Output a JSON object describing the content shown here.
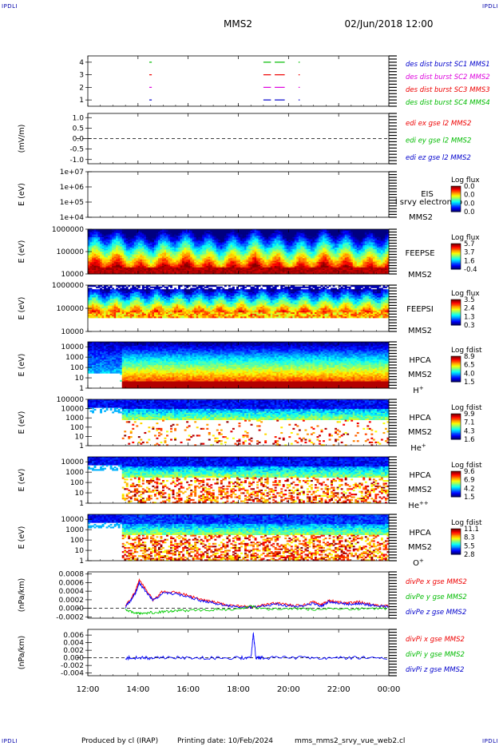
{
  "header": {
    "corner_label": "IPDLI",
    "mission": "MMS2",
    "datetime": "02/Jun/2018 12:00"
  },
  "footer": {
    "produced_by": "Produced by cl (IRAP)",
    "printing_date": "Printing date: 10/Feb/2024",
    "file": "mms_mms2_srvy_vue_web2.cl"
  },
  "colors": {
    "red": "#ff0000",
    "green": "#00cc00",
    "blue": "#0000ff",
    "magenta": "#dd00dd"
  },
  "time_axis": {
    "start_hour": 12,
    "end_hour": 24,
    "ticks": [
      {
        "hour": 12,
        "label": "12:00"
      },
      {
        "hour": 14,
        "label": "14:00"
      },
      {
        "hour": 16,
        "label": "16:00"
      },
      {
        "hour": 18,
        "label": "18:00"
      },
      {
        "hour": 20,
        "label": "20:00"
      },
      {
        "hour": 22,
        "label": "22:00"
      },
      {
        "hour": 24,
        "label": "00:00"
      }
    ]
  },
  "chart_data": [
    {
      "id": "burst",
      "type": "scatter",
      "ylim": [
        0.5,
        4.5
      ],
      "yticks": [
        {
          "v": 1,
          "label": "1"
        },
        {
          "v": 2,
          "label": "2"
        },
        {
          "v": 3,
          "label": "3"
        },
        {
          "v": 4,
          "label": "4"
        }
      ],
      "legend": [
        {
          "text": "des dist burst SC1 MMS1",
          "color": "#0000cc"
        },
        {
          "text": "des dist burst SC2 MMS2",
          "color": "#dd00dd"
        },
        {
          "text": "des dist burst SC3 MMS3",
          "color": "#ee0000"
        },
        {
          "text": "des dist burst SC4 MMS4",
          "color": "#00bb00"
        }
      ],
      "segments": [
        {
          "level": 4,
          "color": "#00bb00",
          "intervals": [
            [
              14.45,
              14.55
            ],
            [
              19.0,
              19.3
            ],
            [
              19.45,
              19.85
            ],
            [
              20.4,
              20.45
            ]
          ]
        },
        {
          "level": 3,
          "color": "#ee0000",
          "intervals": [
            [
              14.45,
              14.55
            ],
            [
              19.0,
              19.3
            ],
            [
              19.45,
              19.85
            ],
            [
              20.4,
              20.45
            ]
          ]
        },
        {
          "level": 2,
          "color": "#dd00dd",
          "intervals": [
            [
              14.45,
              14.55
            ],
            [
              19.0,
              19.3
            ],
            [
              19.45,
              19.85
            ],
            [
              20.4,
              20.45
            ]
          ]
        },
        {
          "level": 1,
          "color": "#0000cc",
          "intervals": [
            [
              14.45,
              14.55
            ],
            [
              19.0,
              19.3
            ],
            [
              19.45,
              19.85
            ],
            [
              20.4,
              20.45
            ]
          ]
        }
      ]
    },
    {
      "id": "edi",
      "type": "line",
      "ylabel": "(mV/m)",
      "ylim": [
        -1.2,
        1.2
      ],
      "yticks": [
        {
          "v": 1.0,
          "label": "1.0"
        },
        {
          "v": 0.5,
          "label": "0.5"
        },
        {
          "v": 0.0,
          "label": "0.0"
        },
        {
          "v": -0.5,
          "label": "-0.5"
        },
        {
          "v": -1.0,
          "label": "-1.0"
        }
      ],
      "zero_line": true,
      "legend": [
        {
          "text": "edi ex gse l2 MMS2",
          "color": "#ee0000"
        },
        {
          "text": "edi ey gse l2 MMS2",
          "color": "#00bb00"
        },
        {
          "text": "edi ez gse l2 MMS2",
          "color": "#0000cc"
        }
      ]
    },
    {
      "id": "eis",
      "type": "heatmap",
      "ylabel": "E (eV)",
      "log": true,
      "ylim": [
        10000,
        10000000
      ],
      "yticks": [
        {
          "v": 10000000,
          "label": "1e+07"
        },
        {
          "v": 1000000,
          "label": "1e+06"
        },
        {
          "v": 100000,
          "label": "1e+05"
        },
        {
          "v": 10000,
          "label": "1e+04"
        }
      ],
      "instrument": [
        "EIS",
        "l srvy electron to",
        "MMS2"
      ],
      "colorbar": {
        "title": "Log flux",
        "labels": [
          "0.0",
          "0.0",
          "0.0",
          "0.0"
        ]
      },
      "empty": true
    },
    {
      "id": "feepse",
      "type": "heatmap",
      "ylabel": "E (eV)",
      "log": true,
      "ylim": [
        10000,
        1000000
      ],
      "yticks": [
        {
          "v": 1000000,
          "label": "1000000"
        },
        {
          "v": 100000,
          "label": "100000"
        },
        {
          "v": 10000,
          "label": "10000"
        }
      ],
      "instrument": [
        "FEEPSE",
        "MMS2"
      ],
      "colorbar": {
        "title": "Log flux",
        "labels": [
          "5.7",
          "3.7",
          "1.6",
          "-0.4"
        ]
      }
    },
    {
      "id": "feepsi",
      "type": "heatmap",
      "ylabel": "E (eV)",
      "log": true,
      "ylim": [
        10000,
        1000000
      ],
      "yticks": [
        {
          "v": 1000000,
          "label": "1000000"
        },
        {
          "v": 100000,
          "label": "100000"
        },
        {
          "v": 10000,
          "label": "10000"
        }
      ],
      "instrument": [
        "FEEPSI",
        "MMS2"
      ],
      "colorbar": {
        "title": "Log flux",
        "labels": [
          "3.5",
          "2.4",
          "1.3",
          "0.3"
        ]
      }
    },
    {
      "id": "hpca_h",
      "type": "heatmap",
      "ylabel": "E (eV)",
      "log": true,
      "ylim": [
        1,
        30000
      ],
      "yticks": [
        {
          "v": 10000,
          "label": "10000"
        },
        {
          "v": 1000,
          "label": "1000"
        },
        {
          "v": 100,
          "label": "100"
        },
        {
          "v": 10,
          "label": "10"
        },
        {
          "v": 1,
          "label": "1"
        }
      ],
      "instrument": [
        "HPCA",
        "MMS2"
      ],
      "species": {
        "base": "H",
        "sup": "+"
      },
      "colorbar": {
        "title": "Log fdist",
        "labels": [
          "8.9",
          "6.5",
          "4.0",
          "1.5"
        ]
      }
    },
    {
      "id": "hpca_he",
      "type": "heatmap",
      "ylabel": "E (eV)",
      "log": true,
      "ylim": [
        1,
        100000
      ],
      "yticks": [
        {
          "v": 100000,
          "label": "100000"
        },
        {
          "v": 10000,
          "label": "10000"
        },
        {
          "v": 1000,
          "label": "1000"
        },
        {
          "v": 100,
          "label": "100"
        },
        {
          "v": 10,
          "label": "10"
        },
        {
          "v": 1,
          "label": "1"
        }
      ],
      "instrument": [
        "HPCA",
        "MMS2"
      ],
      "species": {
        "base": "He",
        "sup": "+"
      },
      "colorbar": {
        "title": "Log fdist",
        "labels": [
          "9.9",
          "7.1",
          "4.3",
          "1.6"
        ]
      }
    },
    {
      "id": "hpca_he2",
      "type": "heatmap",
      "ylabel": "E (eV)",
      "log": true,
      "ylim": [
        1,
        30000
      ],
      "yticks": [
        {
          "v": 10000,
          "label": "10000"
        },
        {
          "v": 1000,
          "label": "1000"
        },
        {
          "v": 100,
          "label": "100"
        },
        {
          "v": 10,
          "label": "10"
        },
        {
          "v": 1,
          "label": "1"
        }
      ],
      "instrument": [
        "HPCA",
        "MMS2"
      ],
      "species": {
        "base": "He",
        "sup": "++"
      },
      "colorbar": {
        "title": "Log fdist",
        "labels": [
          "9.6",
          "6.9",
          "4.2",
          "1.5"
        ]
      }
    },
    {
      "id": "hpca_o",
      "type": "heatmap",
      "ylabel": "E (eV)",
      "log": true,
      "ylim": [
        1,
        30000
      ],
      "yticks": [
        {
          "v": 10000,
          "label": "10000"
        },
        {
          "v": 1000,
          "label": "1000"
        },
        {
          "v": 100,
          "label": "100"
        },
        {
          "v": 10,
          "label": "10"
        },
        {
          "v": 1,
          "label": "1"
        }
      ],
      "instrument": [
        "HPCA",
        "MMS2"
      ],
      "species": {
        "base": "O",
        "sup": "+"
      },
      "colorbar": {
        "title": "Log fdist",
        "labels": [
          "11.1",
          "8.3",
          "5.5",
          "2.8"
        ]
      }
    },
    {
      "id": "divpe",
      "type": "line",
      "ylabel": "(nPa/km)",
      "ylim": [
        -0.00023,
        0.00085
      ],
      "yticks": [
        {
          "v": 0.0008,
          "label": "0.0008"
        },
        {
          "v": 0.0006,
          "label": "0.0006"
        },
        {
          "v": 0.0004,
          "label": "0.0004"
        },
        {
          "v": 0.0002,
          "label": "0.0002"
        },
        {
          "v": 0.0,
          "label": "0.0000"
        },
        {
          "v": -0.0002,
          "label": "-0.0002"
        }
      ],
      "zero_line": true,
      "legend": [
        {
          "text": "divPe x gse MMS2",
          "color": "#ee0000"
        },
        {
          "text": "divPe y gse MMS2",
          "color": "#00bb00"
        },
        {
          "text": "divPe z gse MMS2",
          "color": "#0000cc"
        }
      ],
      "series": [
        {
          "name": "divPe x gse MMS2",
          "color": "#ff0000",
          "x": [
            13.5,
            13.7,
            13.9,
            14.05,
            14.3,
            14.6,
            15.0,
            15.5,
            16.0,
            16.5,
            17.0,
            17.5,
            18.0,
            18.5,
            19.0,
            19.5,
            20.0,
            20.5,
            21.0,
            21.3,
            21.6,
            22.0,
            22.4,
            22.8,
            23.2,
            23.6,
            24.0
          ],
          "y": [
            5e-05,
            0.0002,
            0.0004,
            0.00065,
            0.00045,
            0.0002,
            0.0004,
            0.00037,
            0.0003,
            0.0002,
            0.00015,
            8e-05,
            5e-05,
            3e-05,
            8e-05,
            0.00012,
            8e-05,
            6e-05,
            0.00015,
            8e-05,
            0.00018,
            0.00015,
            0.00012,
            0.00015,
            0.0001,
            6e-05,
            5e-05
          ]
        },
        {
          "name": "divPe z gse MMS2",
          "color": "#0000ff",
          "x": [
            13.5,
            13.7,
            13.9,
            14.05,
            14.3,
            14.6,
            15.0,
            15.5,
            16.0,
            16.5,
            17.0,
            17.5,
            18.0,
            18.5,
            19.0,
            19.5,
            20.0,
            20.5,
            21.0,
            21.3,
            21.6,
            22.0,
            22.4,
            22.8,
            23.2,
            23.6,
            24.0
          ],
          "y": [
            3e-05,
            0.00018,
            0.00035,
            0.0006,
            0.0004,
            0.00018,
            0.00036,
            0.00034,
            0.00027,
            0.00018,
            0.00013,
            6e-05,
            3e-05,
            2e-05,
            6e-05,
            0.0001,
            6e-05,
            4e-05,
            0.00012,
            6e-05,
            0.00015,
            0.00012,
            0.0001,
            0.00012,
            8e-05,
            5e-05,
            4e-05
          ]
        },
        {
          "name": "divPe y gse MMS2",
          "color": "#00cc00",
          "x": [
            13.5,
            13.8,
            14.1,
            14.5,
            15.0,
            15.5,
            16.0,
            17.0,
            18.0,
            18.5,
            19.0,
            20.0,
            21.0,
            22.0,
            23.0,
            24.0
          ],
          "y": [
            -3e-05,
            -0.0001,
            -0.00012,
            -0.0001,
            -8e-05,
            -6e-05,
            -5e-05,
            -3e-05,
            -2e-05,
            5e-05,
            -2e-05,
            -1e-05,
            -2e-05,
            -1e-05,
            -1e-05,
            0.0
          ]
        }
      ]
    },
    {
      "id": "divpi",
      "type": "line",
      "ylabel": "(nPa/km)",
      "ylim": [
        -0.0047,
        0.0075
      ],
      "yticks": [
        {
          "v": 0.006,
          "label": "0.006"
        },
        {
          "v": 0.004,
          "label": "0.004"
        },
        {
          "v": 0.002,
          "label": "0.002"
        },
        {
          "v": 0.0,
          "label": "0.000"
        },
        {
          "v": -0.002,
          "label": "-0.002"
        },
        {
          "v": -0.004,
          "label": "-0.004"
        }
      ],
      "zero_line": true,
      "legend": [
        {
          "text": "divPi x gse MMS2",
          "color": "#ee0000"
        },
        {
          "text": "divPi y gse MMS2",
          "color": "#00bb00"
        },
        {
          "text": "divPi z gse MMS2",
          "color": "#0000cc"
        }
      ],
      "series": [
        {
          "name": "divPi z gse MMS2",
          "color": "#0000ff",
          "x": [
            13.5,
            14.0,
            14.5,
            15.0,
            16.0,
            17.0,
            18.0,
            18.5,
            18.6,
            18.7,
            19.0,
            20.0,
            21.0,
            22.0,
            23.0,
            24.0
          ],
          "y": [
            0.0,
            0.0,
            0.0,
            0.0,
            0.0,
            0.0,
            0.0,
            0.0,
            0.0065,
            0.0,
            0.0,
            0.0,
            0.0,
            0.0,
            0.0,
            0.0
          ]
        }
      ]
    }
  ]
}
